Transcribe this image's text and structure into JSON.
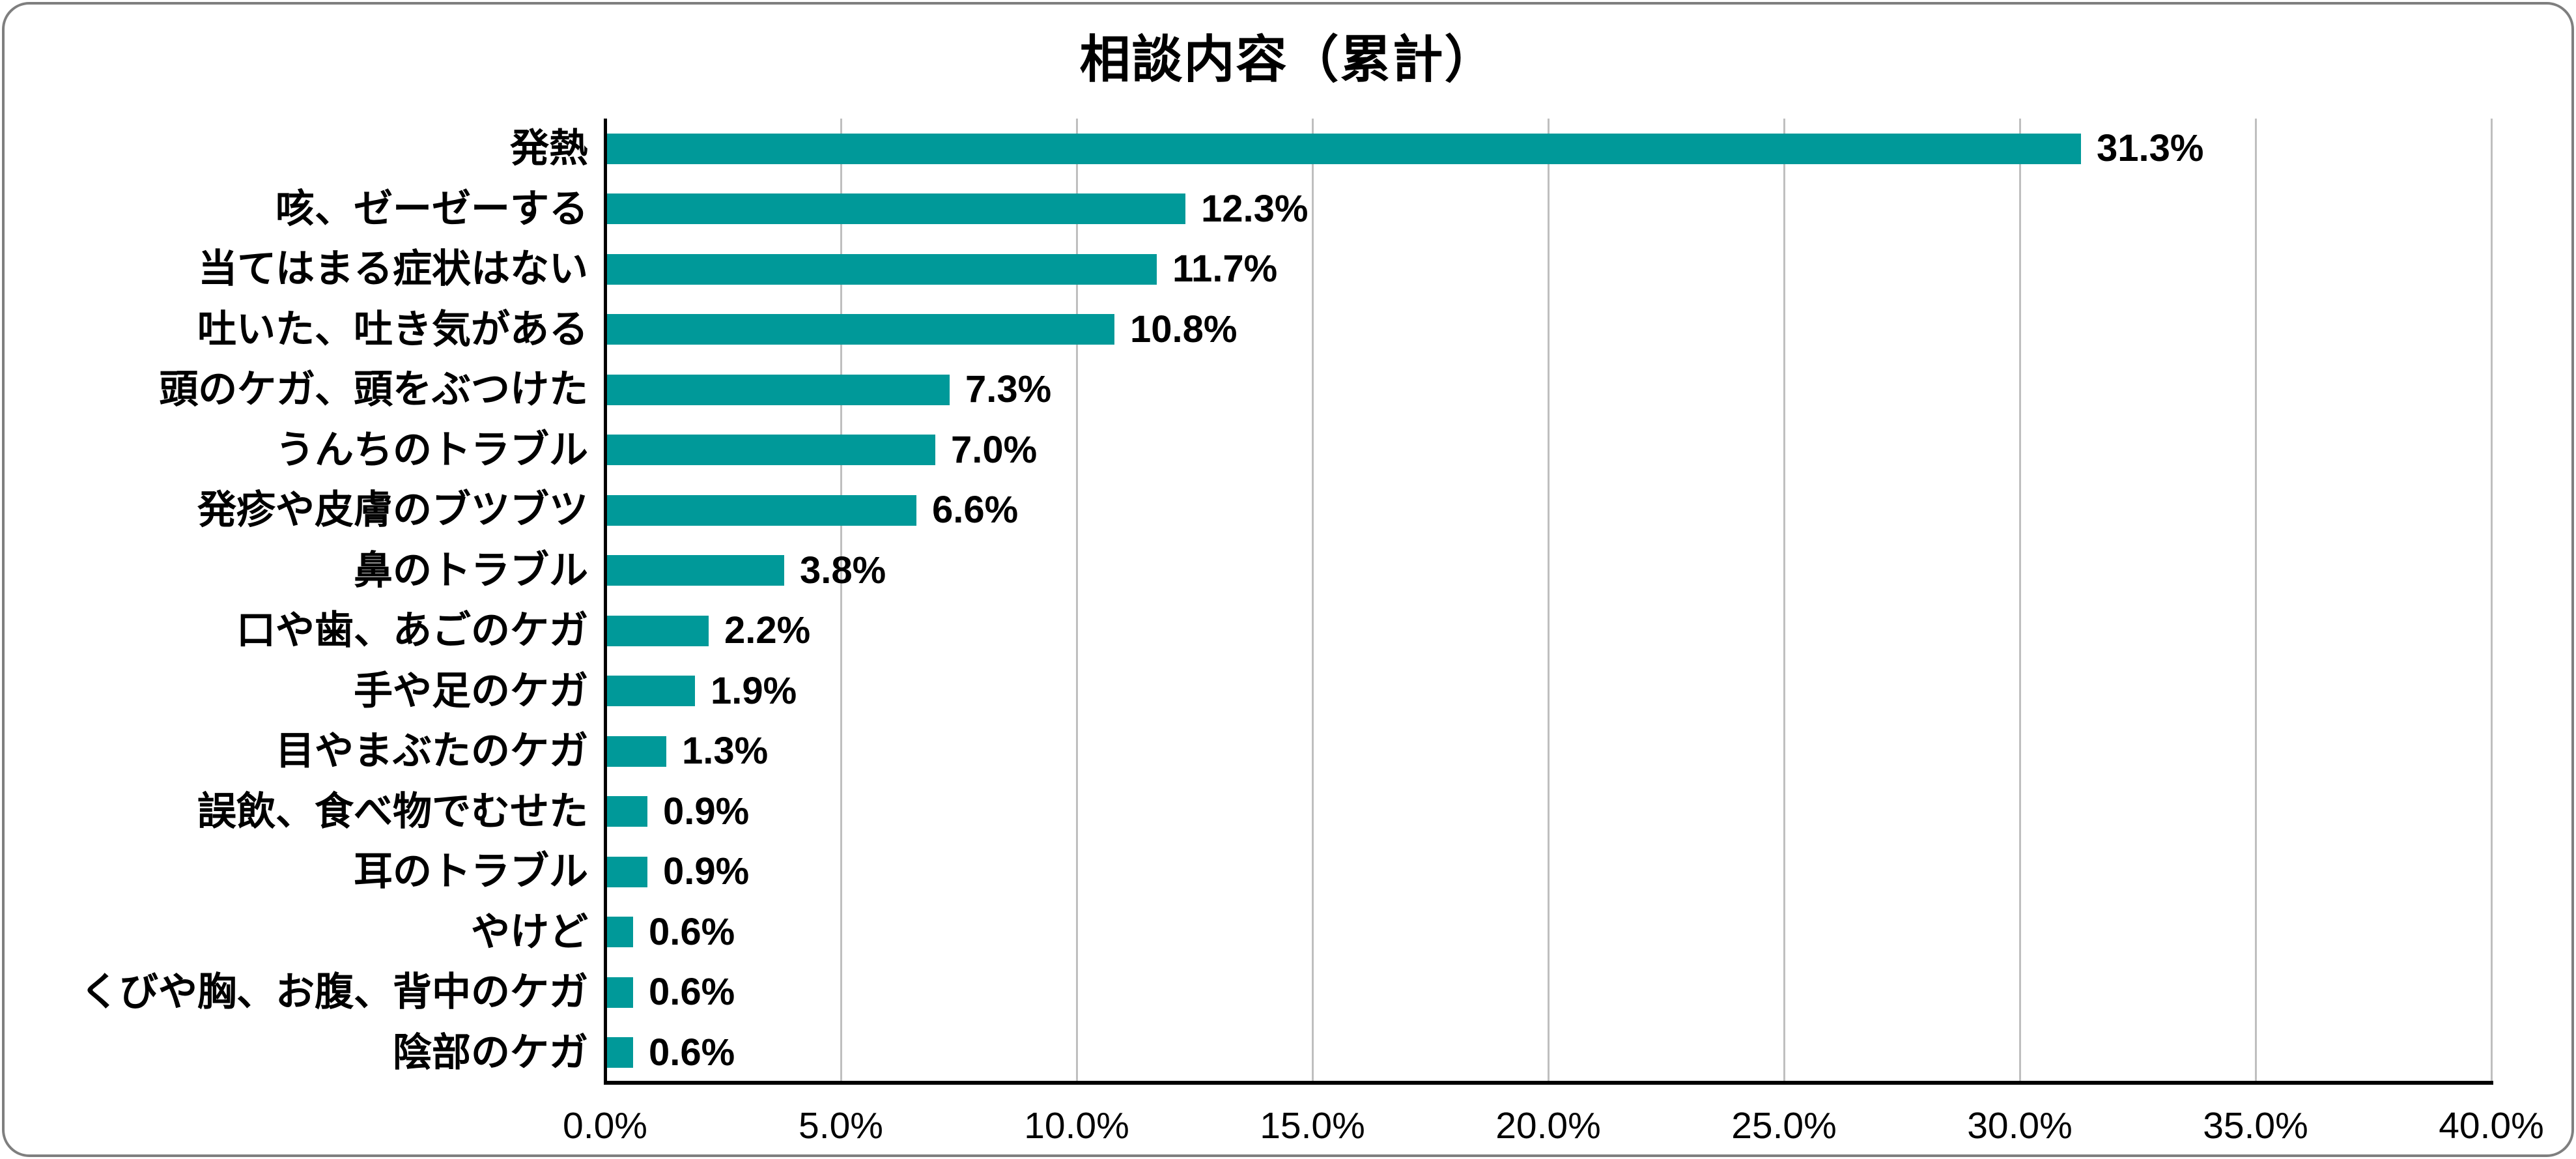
{
  "chart_data": {
    "type": "bar",
    "orientation": "horizontal",
    "title": "相談内容（累計）",
    "categories": [
      "発熱",
      "咳、ゼーゼーする",
      "当てはまる症状はない",
      "吐いた、吐き気がある",
      "頭のケガ、頭をぶつけた",
      "うんちのトラブル",
      "発疹や皮膚のブツブツ",
      "鼻のトラブル",
      "口や歯、あごのケガ",
      "手や足のケガ",
      "目やまぶたのケガ",
      "誤飲、食べ物でむせた",
      "耳のトラブル",
      "やけど",
      "くびや胸、お腹、背中のケガ",
      "陰部のケガ"
    ],
    "values": [
      31.3,
      12.3,
      11.7,
      10.8,
      7.3,
      7.0,
      6.6,
      3.8,
      2.2,
      1.9,
      1.3,
      0.9,
      0.9,
      0.6,
      0.6,
      0.6
    ],
    "value_labels": [
      "31.3%",
      "12.3%",
      "11.7%",
      "10.8%",
      "7.3%",
      "7.0%",
      "6.6%",
      "3.8%",
      "2.2%",
      "1.9%",
      "1.3%",
      "0.9%",
      "0.9%",
      "0.6%",
      "0.6%",
      "0.6%"
    ],
    "x_tick_labels": [
      "0.0%",
      "5.0%",
      "10.0%",
      "15.0%",
      "20.0%",
      "25.0%",
      "30.0%",
      "35.0%",
      "40.0%"
    ],
    "xlim": [
      0,
      40
    ],
    "xlabel": "",
    "ylabel": "",
    "grid": "vertical",
    "legend": "none",
    "bar_color": "#009999",
    "gridline_color": "#bfbfbf",
    "axis_color": "#000000",
    "text_color": "#000000",
    "background_color": "#ffffff",
    "border_color": "#7f7f7f"
  }
}
